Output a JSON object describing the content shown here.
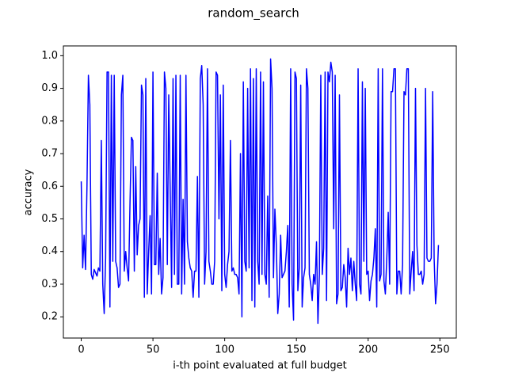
{
  "chart_data": {
    "type": "line",
    "title": "random_search",
    "xlabel": "i-th point evaluated at full budget",
    "ylabel": "accuracy",
    "x": [
      0,
      1,
      2,
      3,
      4,
      5,
      6,
      7,
      8,
      9,
      10,
      11,
      12,
      13,
      14,
      15,
      16,
      17,
      18,
      19,
      20,
      21,
      22,
      23,
      24,
      25,
      26,
      27,
      28,
      29,
      30,
      31,
      32,
      33,
      34,
      35,
      36,
      37,
      38,
      39,
      40,
      41,
      42,
      43,
      44,
      45,
      46,
      47,
      48,
      49,
      50,
      51,
      52,
      53,
      54,
      55,
      56,
      57,
      58,
      59,
      60,
      61,
      62,
      63,
      64,
      65,
      66,
      67,
      68,
      69,
      70,
      71,
      72,
      73,
      74,
      75,
      76,
      77,
      78,
      79,
      80,
      81,
      82,
      83,
      84,
      85,
      86,
      87,
      88,
      89,
      90,
      91,
      92,
      93,
      94,
      95,
      96,
      97,
      98,
      99,
      100,
      101,
      102,
      103,
      104,
      105,
      106,
      107,
      108,
      109,
      110,
      111,
      112,
      113,
      114,
      115,
      116,
      117,
      118,
      119,
      120,
      121,
      122,
      123,
      124,
      125,
      126,
      127,
      128,
      129,
      130,
      131,
      132,
      133,
      134,
      135,
      136,
      137,
      138,
      139,
      140,
      141,
      142,
      143,
      144,
      145,
      146,
      147,
      148,
      149,
      150,
      151,
      152,
      153,
      154,
      155,
      156,
      157,
      158,
      159,
      160,
      161,
      162,
      163,
      164,
      165,
      166,
      167,
      168,
      169,
      170,
      171,
      172,
      173,
      174,
      175,
      176,
      177,
      178,
      179,
      180,
      181,
      182,
      183,
      184,
      185,
      186,
      187,
      188,
      189,
      190,
      191,
      192,
      193,
      194,
      195,
      196,
      197,
      198,
      199,
      200,
      201,
      202,
      203,
      204,
      205,
      206,
      207,
      208,
      209,
      210,
      211,
      212,
      213,
      214,
      215,
      216,
      217,
      218,
      219,
      220,
      221,
      222,
      223,
      224,
      225,
      226,
      227,
      228,
      229,
      230,
      231,
      232,
      233,
      234,
      235,
      236,
      237,
      238,
      239,
      240,
      241,
      242,
      243,
      244,
      245,
      246,
      247,
      248,
      249
    ],
    "series": [
      {
        "color": "#0000ff",
        "values": [
          0.615,
          0.35,
          0.45,
          0.345,
          0.6,
          0.94,
          0.85,
          0.33,
          0.315,
          0.345,
          0.335,
          0.325,
          0.35,
          0.34,
          0.74,
          0.3,
          0.21,
          0.38,
          0.95,
          0.95,
          0.23,
          0.94,
          0.37,
          0.94,
          0.37,
          0.35,
          0.29,
          0.3,
          0.88,
          0.94,
          0.34,
          0.4,
          0.35,
          0.31,
          0.55,
          0.75,
          0.74,
          0.34,
          0.66,
          0.39,
          0.48,
          0.5,
          0.91,
          0.88,
          0.26,
          0.93,
          0.27,
          0.4,
          0.51,
          0.27,
          0.95,
          0.36,
          0.36,
          0.64,
          0.33,
          0.44,
          0.27,
          0.32,
          0.95,
          0.9,
          0.36,
          0.88,
          0.59,
          0.29,
          0.93,
          0.33,
          0.94,
          0.3,
          0.3,
          0.94,
          0.27,
          0.56,
          0.3,
          0.94,
          0.43,
          0.38,
          0.35,
          0.34,
          0.26,
          0.34,
          0.34,
          0.63,
          0.26,
          0.93,
          0.97,
          0.85,
          0.3,
          0.4,
          0.96,
          0.37,
          0.34,
          0.3,
          0.3,
          0.37,
          0.95,
          0.94,
          0.5,
          0.88,
          0.28,
          0.91,
          0.33,
          0.29,
          0.36,
          0.4,
          0.74,
          0.34,
          0.35,
          0.33,
          0.33,
          0.32,
          0.27,
          0.7,
          0.2,
          0.92,
          0.37,
          0.34,
          0.9,
          0.35,
          0.96,
          0.25,
          0.93,
          0.23,
          0.96,
          0.37,
          0.3,
          0.95,
          0.33,
          0.92,
          0.33,
          0.3,
          0.57,
          0.26,
          0.99,
          0.9,
          0.32,
          0.53,
          0.42,
          0.21,
          0.27,
          0.45,
          0.32,
          0.33,
          0.34,
          0.4,
          0.48,
          0.23,
          0.96,
          0.3,
          0.19,
          0.95,
          0.93,
          0.28,
          0.35,
          0.91,
          0.23,
          0.32,
          0.35,
          0.96,
          0.9,
          0.33,
          0.3,
          0.25,
          0.33,
          0.3,
          0.43,
          0.18,
          0.33,
          0.94,
          0.33,
          0.41,
          0.95,
          0.25,
          0.95,
          0.92,
          0.98,
          0.95,
          0.47,
          0.94,
          0.24,
          0.27,
          0.88,
          0.28,
          0.29,
          0.36,
          0.32,
          0.23,
          0.41,
          0.33,
          0.38,
          0.28,
          0.37,
          0.3,
          0.25,
          0.96,
          0.3,
          0.27,
          0.92,
          0.37,
          0.9,
          0.33,
          0.34,
          0.25,
          0.31,
          0.33,
          0.38,
          0.47,
          0.23,
          0.96,
          0.31,
          0.33,
          0.96,
          0.31,
          0.27,
          0.38,
          0.52,
          0.3,
          0.89,
          0.89,
          0.96,
          0.96,
          0.27,
          0.34,
          0.34,
          0.27,
          0.36,
          0.89,
          0.88,
          0.96,
          0.96,
          0.27,
          0.34,
          0.4,
          0.28,
          0.9,
          0.42,
          0.33,
          0.33,
          0.34,
          0.3,
          0.33,
          0.9,
          0.38,
          0.37,
          0.37,
          0.38,
          0.89,
          0.38,
          0.24,
          0.3,
          0.42
        ]
      }
    ],
    "xlim": [
      -12.45,
      261.45
    ],
    "xticks": [
      0,
      50,
      100,
      150,
      200,
      250
    ],
    "ylim": [
      0.135,
      1.03
    ],
    "yticks": [
      0.2,
      0.3,
      0.4,
      0.5,
      0.6,
      0.7,
      0.8,
      0.9,
      {
        "value": 1,
        "label": "1.0"
      }
    ],
    "grid": false
  }
}
